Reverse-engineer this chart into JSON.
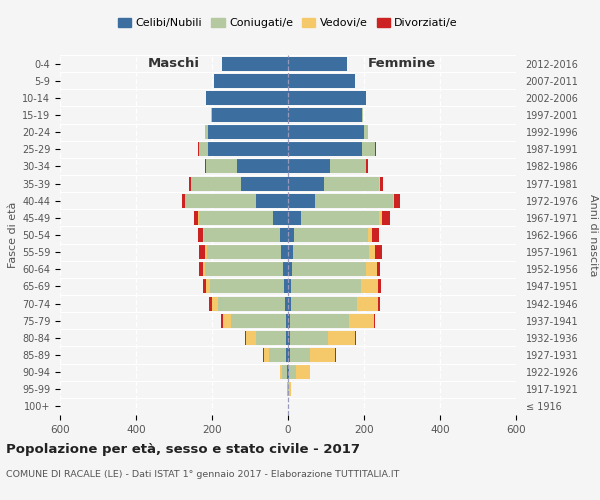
{
  "age_groups": [
    "100+",
    "95-99",
    "90-94",
    "85-89",
    "80-84",
    "75-79",
    "70-74",
    "65-69",
    "60-64",
    "55-59",
    "50-54",
    "45-49",
    "40-44",
    "35-39",
    "30-34",
    "25-29",
    "20-24",
    "15-19",
    "10-14",
    "5-9",
    "0-4"
  ],
  "birth_years": [
    "≤ 1916",
    "1917-1921",
    "1922-1926",
    "1927-1931",
    "1932-1936",
    "1937-1941",
    "1942-1946",
    "1947-1951",
    "1952-1956",
    "1957-1961",
    "1962-1966",
    "1967-1971",
    "1972-1976",
    "1977-1981",
    "1982-1986",
    "1987-1991",
    "1992-1996",
    "1997-2001",
    "2002-2006",
    "2007-2011",
    "2012-2016"
  ],
  "males": {
    "celibe": [
      0,
      0,
      2,
      4,
      5,
      6,
      8,
      10,
      14,
      18,
      22,
      40,
      85,
      125,
      135,
      210,
      210,
      200,
      215,
      195,
      175
    ],
    "coniugato": [
      1,
      2,
      15,
      45,
      80,
      145,
      175,
      195,
      205,
      195,
      200,
      195,
      185,
      130,
      80,
      25,
      8,
      2,
      0,
      0,
      0
    ],
    "vedovo": [
      0,
      1,
      5,
      15,
      25,
      20,
      18,
      12,
      6,
      5,
      3,
      2,
      1,
      0,
      0,
      0,
      0,
      0,
      0,
      0,
      0
    ],
    "divorziato": [
      0,
      0,
      0,
      1,
      3,
      5,
      6,
      8,
      10,
      15,
      12,
      10,
      8,
      5,
      3,
      2,
      1,
      0,
      0,
      0,
      0
    ]
  },
  "females": {
    "nubile": [
      0,
      0,
      2,
      4,
      5,
      5,
      7,
      8,
      10,
      12,
      15,
      35,
      70,
      95,
      110,
      195,
      200,
      195,
      205,
      175,
      155
    ],
    "coniugata": [
      1,
      3,
      20,
      55,
      100,
      155,
      175,
      185,
      195,
      200,
      195,
      205,
      205,
      145,
      95,
      35,
      10,
      2,
      0,
      0,
      0
    ],
    "vedova": [
      0,
      5,
      35,
      65,
      70,
      65,
      55,
      45,
      28,
      18,
      12,
      8,
      5,
      3,
      1,
      0,
      0,
      0,
      0,
      0,
      0
    ],
    "divorziata": [
      0,
      0,
      1,
      2,
      3,
      5,
      6,
      8,
      10,
      18,
      18,
      20,
      15,
      8,
      4,
      2,
      1,
      0,
      0,
      0,
      0
    ]
  },
  "colors": {
    "celibe": "#3c6fa0",
    "coniugato": "#b5c9a0",
    "vedovo": "#f5c96a",
    "divorziato": "#cc2222"
  },
  "title": "Popolazione per età, sesso e stato civile - 2017",
  "subtitle": "COMUNE DI RACALE (LE) - Dati ISTAT 1° gennaio 2017 - Elaborazione TUTTITALIA.IT",
  "xlabel_left": "Maschi",
  "xlabel_right": "Femmine",
  "ylabel_left": "Fasce di età",
  "ylabel_right": "Anni di nascita",
  "xlim": 600,
  "legend_labels": [
    "Celibi/Nubili",
    "Coniugati/e",
    "Vedovi/e",
    "Divorziati/e"
  ],
  "background_color": "#f5f5f5"
}
